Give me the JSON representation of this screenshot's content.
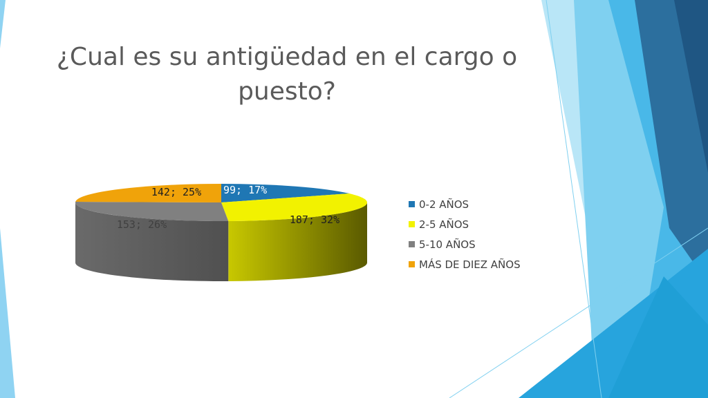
{
  "slide": {
    "title": "¿Cual es su antigüedad en el cargo o puesto?"
  },
  "chart_data": {
    "type": "pie",
    "style": "3d",
    "title": "",
    "slices": [
      {
        "category": "0-2 AÑOS",
        "value": 99,
        "percent": 17,
        "label": "99; 17%",
        "color": "#1f77b4"
      },
      {
        "category": "2-5 AÑOS",
        "value": 187,
        "percent": 32,
        "label": "187; 32%",
        "color": "#f2f200"
      },
      {
        "category": "5-10 AÑOS",
        "value": 153,
        "percent": 26,
        "label": "153; 26%",
        "color": "#808080"
      },
      {
        "category": "MÁS DE DIEZ AÑOS",
        "value": 142,
        "percent": 25,
        "label": "142; 25%",
        "color": "#f0a30a"
      }
    ],
    "legend_position": "right"
  },
  "theme": {
    "background": "#ffffff",
    "title_color": "#5a5a5a",
    "accent_light": "#8fd3f2",
    "accent_mid": "#3fb3e6",
    "accent_dark": "#1f5f8f"
  }
}
